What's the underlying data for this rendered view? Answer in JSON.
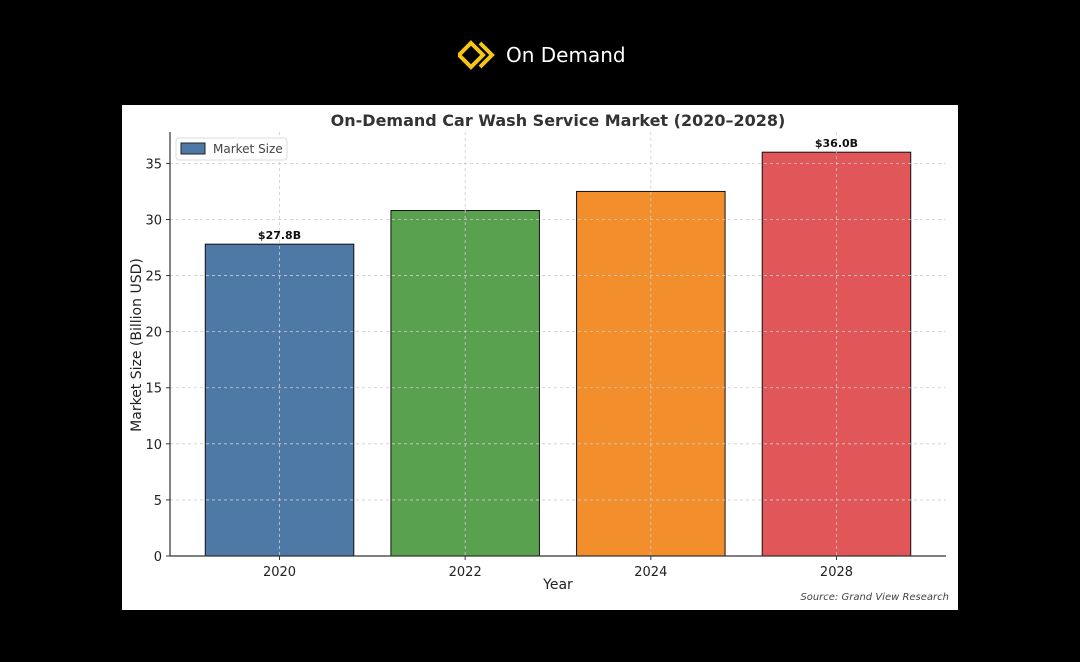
{
  "brand": {
    "name": "On Demand",
    "logo_color": "#f5c518"
  },
  "chart_data": {
    "type": "bar",
    "title": "On-Demand Car Wash Service Market (2020–2028)",
    "xlabel": "Year",
    "ylabel": "Market Size (Billion USD)",
    "categories": [
      "2020",
      "2022",
      "2024",
      "2028"
    ],
    "values": [
      27.8,
      30.8,
      32.5,
      36.0
    ],
    "colors": [
      "#4e79a7",
      "#59a14f",
      "#f28e2b",
      "#e15759"
    ],
    "data_labels": [
      "$27.8B",
      "",
      "",
      "$36.0B"
    ],
    "ylim": [
      0,
      37.8
    ],
    "yticks": [
      0,
      5,
      10,
      15,
      20,
      25,
      30,
      35
    ],
    "grid": true,
    "legend": {
      "entries": [
        "Market Size"
      ],
      "placement": "top-left"
    },
    "source": "Source: Grand View Research"
  }
}
